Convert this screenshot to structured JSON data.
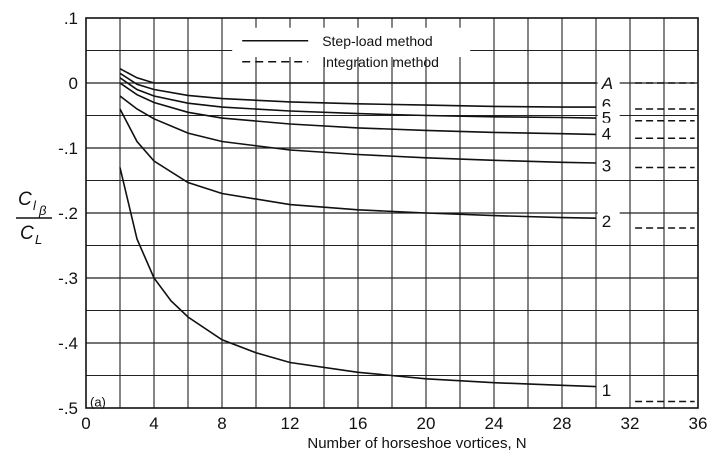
{
  "chart_data": {
    "type": "line",
    "title": "",
    "xlabel": "Number of horseshoe vortices, N",
    "ylabel": {
      "main": "C",
      "sub": "l",
      "subsub": "β",
      "den": "C",
      "densub": "L"
    },
    "xlim": [
      0,
      36
    ],
    "ylim": [
      -0.5,
      0.1
    ],
    "xticks": [
      0,
      4,
      8,
      12,
      16,
      20,
      24,
      28,
      32,
      36
    ],
    "xtick_labels": [
      "0",
      "4",
      "8",
      "12",
      "16",
      "20",
      "24",
      "28",
      "32",
      "36"
    ],
    "yticks": [
      0.1,
      0,
      -0.1,
      -0.2,
      -0.3,
      -0.4,
      -0.5
    ],
    "ytick_labels": [
      ".1",
      "0",
      "-.1",
      "-.2",
      "-.3",
      "-.4",
      "-.5"
    ],
    "grid": true,
    "legend_position": "top-center",
    "legend": [
      {
        "label": "Step-load method",
        "style": "solid"
      },
      {
        "label": "Integration method",
        "style": "dashed"
      }
    ],
    "panel_label": "(a)",
    "series": [
      {
        "name": "A",
        "x": [
          2,
          3,
          4,
          6,
          8,
          12,
          16,
          20,
          24,
          28,
          30
        ],
        "y": [
          0.022,
          0.008,
          0.0,
          0.0,
          0.0,
          0.0,
          0.0,
          0.0,
          0.0,
          0.0,
          0.0
        ],
        "integration_value": 0.0
      },
      {
        "name": "6",
        "x": [
          2,
          3,
          4,
          6,
          8,
          12,
          16,
          20,
          24,
          28,
          30
        ],
        "y": [
          0.015,
          -0.002,
          -0.01,
          -0.019,
          -0.024,
          -0.029,
          -0.032,
          -0.034,
          -0.036,
          -0.037,
          -0.037
        ],
        "integration_value": -0.04
      },
      {
        "name": "5",
        "x": [
          2,
          3,
          4,
          6,
          8,
          12,
          16,
          20,
          24,
          28,
          30
        ],
        "y": [
          0.008,
          -0.01,
          -0.02,
          -0.031,
          -0.037,
          -0.043,
          -0.047,
          -0.05,
          -0.052,
          -0.053,
          -0.054
        ],
        "integration_value": -0.058
      },
      {
        "name": "4",
        "x": [
          2,
          3,
          4,
          6,
          8,
          12,
          16,
          20,
          24,
          28,
          30
        ],
        "y": [
          0.0,
          -0.018,
          -0.03,
          -0.045,
          -0.054,
          -0.063,
          -0.069,
          -0.073,
          -0.076,
          -0.078,
          -0.079
        ],
        "integration_value": -0.085
      },
      {
        "name": "3",
        "x": [
          2,
          3,
          4,
          6,
          8,
          12,
          16,
          20,
          24,
          28,
          30
        ],
        "y": [
          -0.02,
          -0.04,
          -0.055,
          -0.077,
          -0.09,
          -0.103,
          -0.11,
          -0.115,
          -0.119,
          -0.122,
          -0.123
        ],
        "integration_value": -0.13
      },
      {
        "name": "2",
        "x": [
          2,
          3,
          4,
          6,
          8,
          12,
          16,
          20,
          24,
          28,
          30
        ],
        "y": [
          -0.04,
          -0.09,
          -0.12,
          -0.153,
          -0.17,
          -0.187,
          -0.195,
          -0.2,
          -0.204,
          -0.207,
          -0.208
        ],
        "integration_value": -0.223
      },
      {
        "name": "1",
        "x": [
          2,
          3,
          4,
          5,
          6,
          8,
          10,
          12,
          16,
          20,
          24,
          28,
          30
        ],
        "y": [
          -0.13,
          -0.24,
          -0.3,
          -0.335,
          -0.36,
          -0.395,
          -0.415,
          -0.43,
          -0.445,
          -0.455,
          -0.461,
          -0.465,
          -0.467
        ],
        "integration_value": -0.49
      }
    ]
  }
}
